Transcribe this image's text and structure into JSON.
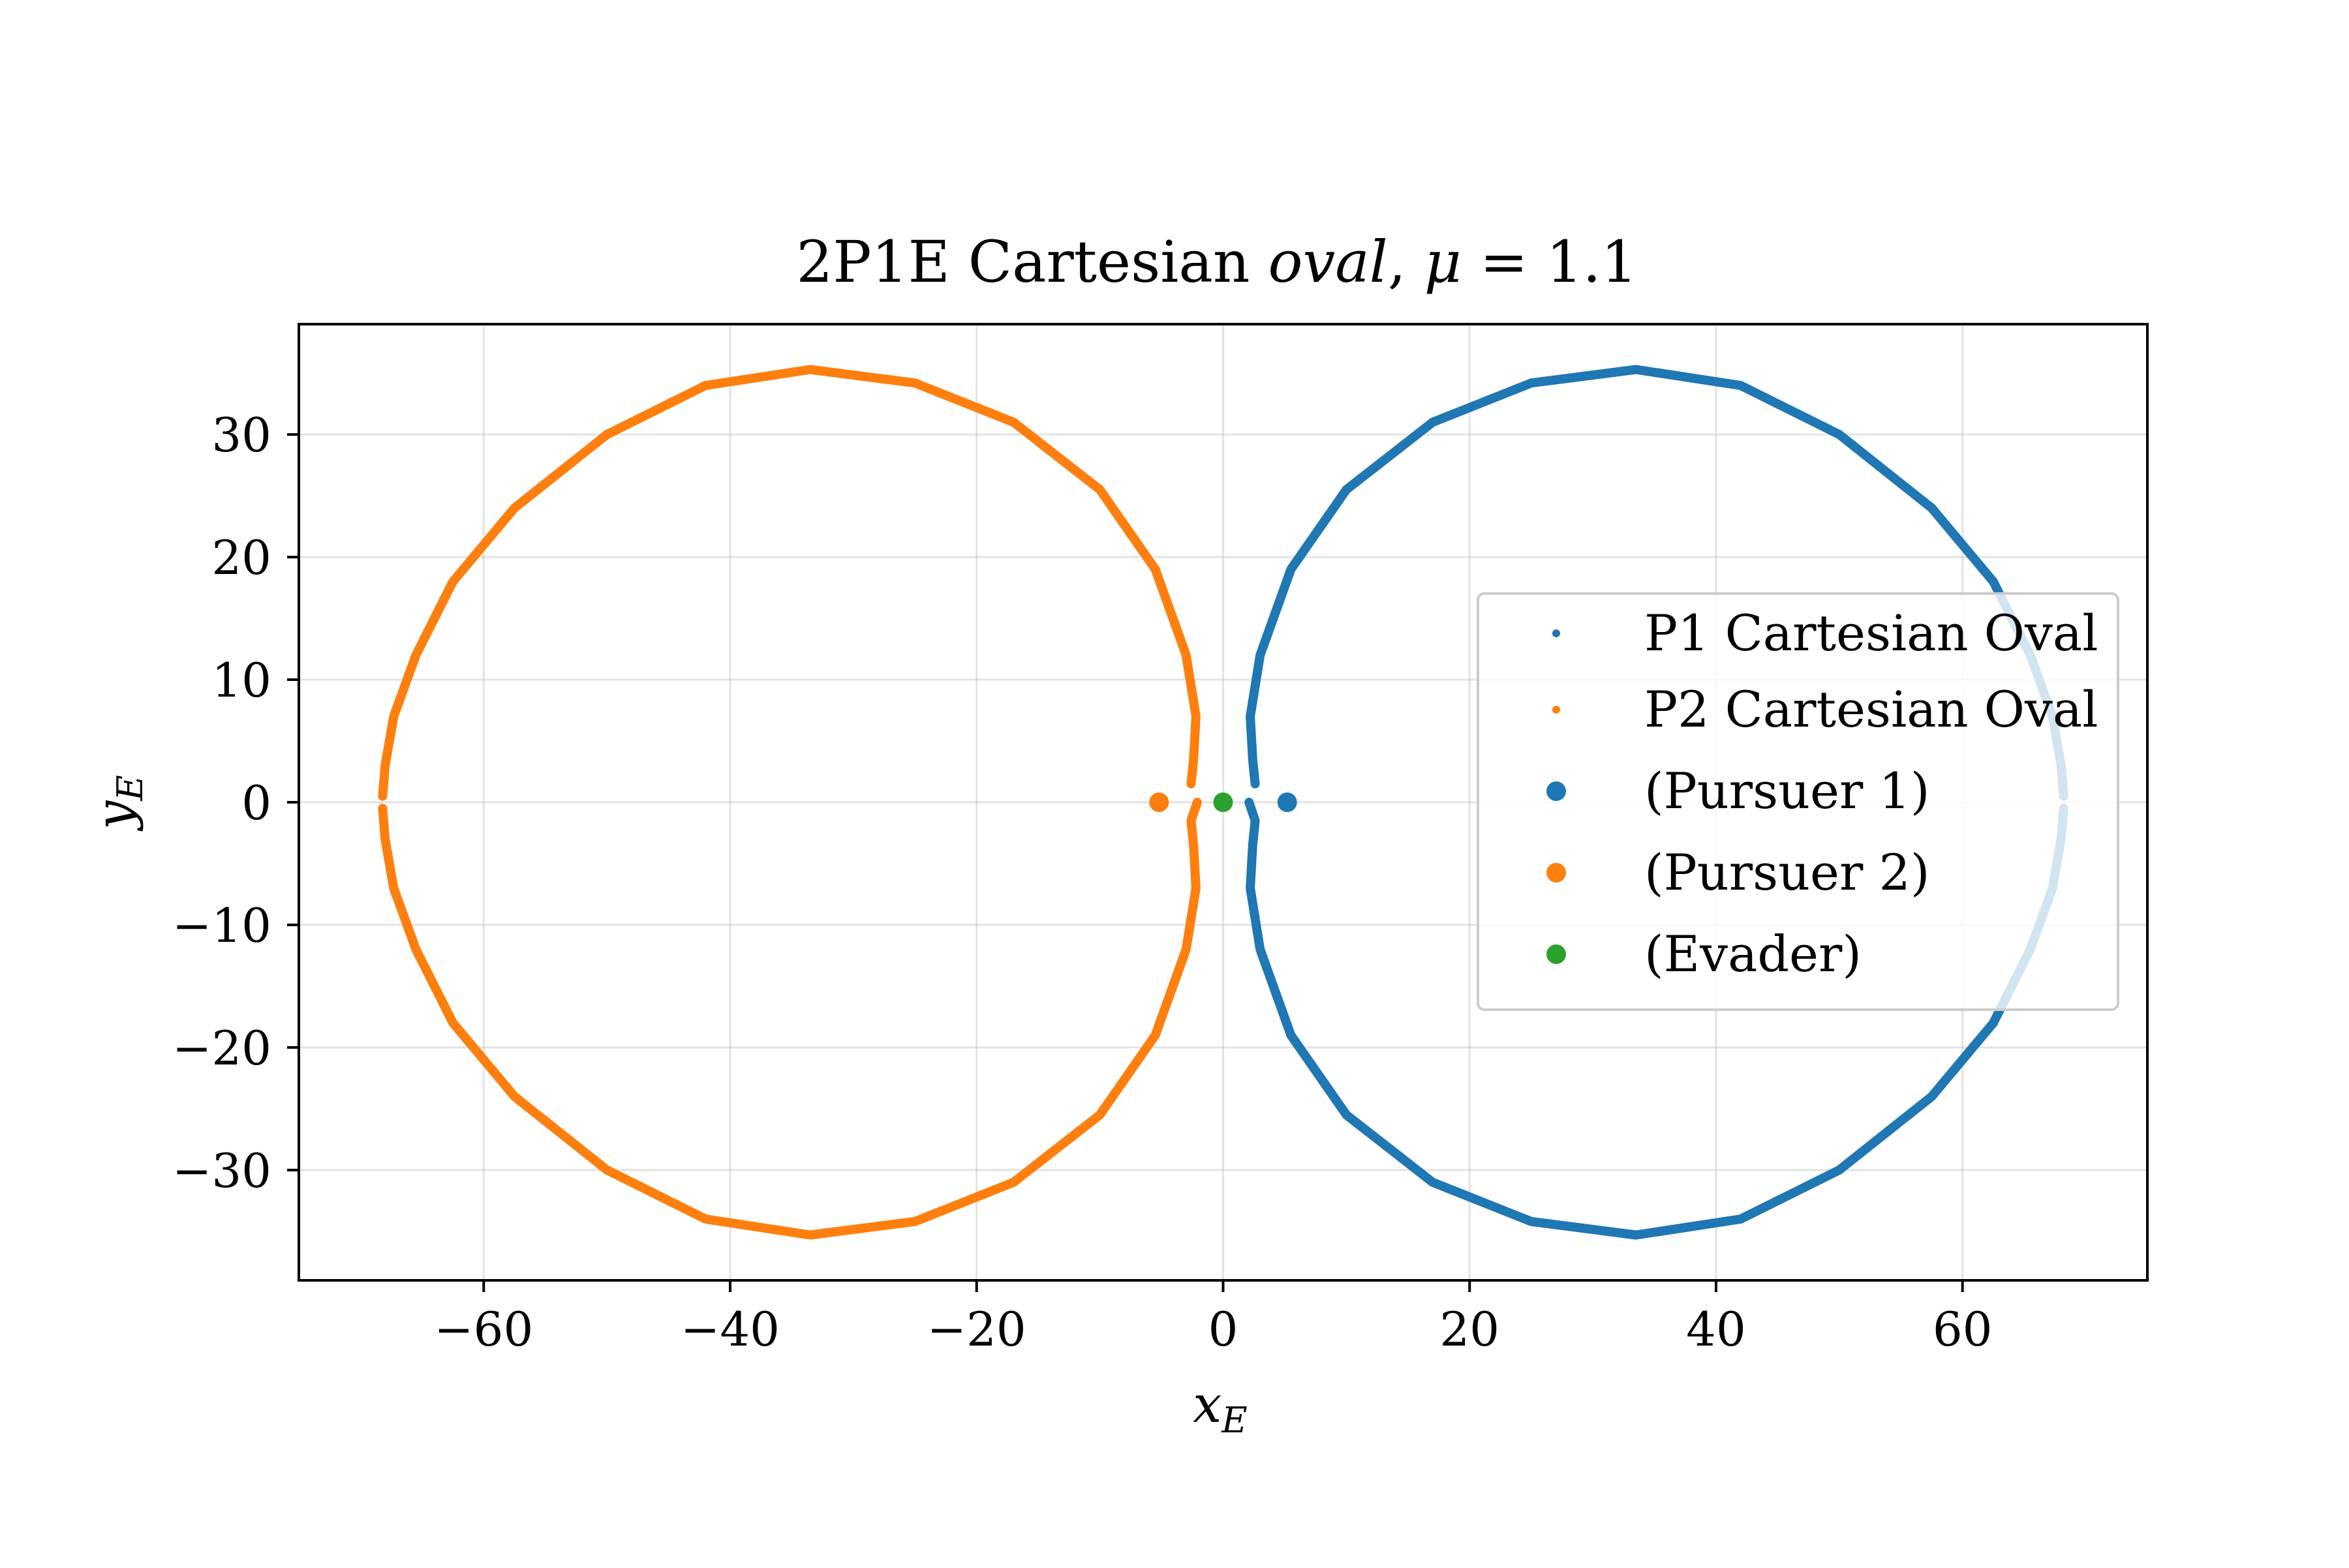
{
  "chart_data": {
    "type": "scatter",
    "title": "2P1E Cartesian oval, μ = 1.1",
    "title_parts": {
      "lead": "2P1E Cartesian ",
      "math_italic_1": "oval",
      "math_sep": ", ",
      "math_italic_2": "μ",
      "math_rest": " = 1.1"
    },
    "xlabel": {
      "base": "x",
      "sub": "E"
    },
    "ylabel": {
      "base": "y",
      "sub": "E"
    },
    "xlim": [
      -75,
      75
    ],
    "ylim": [
      -39,
      39
    ],
    "xticks": [
      -60,
      -40,
      -20,
      0,
      20,
      40,
      60
    ],
    "yticks": [
      -30,
      -20,
      -10,
      0,
      10,
      20,
      30
    ],
    "xtick_labels": [
      "−60",
      "−40",
      "−20",
      "0",
      "20",
      "40",
      "60"
    ],
    "ytick_labels": [
      "−30",
      "−20",
      "−10",
      "0",
      "10",
      "20",
      "30"
    ],
    "grid": true,
    "legend_position": "center-right",
    "mu": 1.1,
    "series": [
      {
        "name": "P1 Cartesian Oval",
        "color": "#1f77b4",
        "marker": "small-dot",
        "oval_points": [
          {
            "x": 68.2,
            "y": 0.5
          },
          {
            "x": 68.0,
            "y": 3
          },
          {
            "x": 67.3,
            "y": 7
          },
          {
            "x": 65.5,
            "y": 12
          },
          {
            "x": 62.5,
            "y": 18
          },
          {
            "x": 57.5,
            "y": 24
          },
          {
            "x": 50.0,
            "y": 30
          },
          {
            "x": 42.0,
            "y": 34
          },
          {
            "x": 33.5,
            "y": 35.3
          },
          {
            "x": 25.0,
            "y": 34.2
          },
          {
            "x": 17.0,
            "y": 31
          },
          {
            "x": 10.0,
            "y": 25.5
          },
          {
            "x": 5.5,
            "y": 19
          },
          {
            "x": 3.0,
            "y": 12
          },
          {
            "x": 2.2,
            "y": 7
          },
          {
            "x": 2.4,
            "y": 3.5
          },
          {
            "x": 2.6,
            "y": 1.5
          },
          {
            "x": 2.1,
            "y": 0
          },
          {
            "x": 2.6,
            "y": -1.5
          },
          {
            "x": 2.4,
            "y": -3.5
          },
          {
            "x": 2.2,
            "y": -7
          },
          {
            "x": 3.0,
            "y": -12
          },
          {
            "x": 5.5,
            "y": -19
          },
          {
            "x": 10.0,
            "y": -25.5
          },
          {
            "x": 17.0,
            "y": -31
          },
          {
            "x": 25.0,
            "y": -34.2
          },
          {
            "x": 33.5,
            "y": -35.3
          },
          {
            "x": 42.0,
            "y": -34
          },
          {
            "x": 50.0,
            "y": -30
          },
          {
            "x": 57.5,
            "y": -24
          },
          {
            "x": 62.5,
            "y": -18
          },
          {
            "x": 65.5,
            "y": -12
          },
          {
            "x": 67.3,
            "y": -7
          },
          {
            "x": 68.0,
            "y": -3
          },
          {
            "x": 68.2,
            "y": -0.5
          }
        ]
      },
      {
        "name": "P2 Cartesian Oval",
        "color": "#ff7f0e",
        "marker": "small-dot",
        "oval_points": [
          {
            "x": -68.2,
            "y": 0.5
          },
          {
            "x": -68.0,
            "y": 3
          },
          {
            "x": -67.3,
            "y": 7
          },
          {
            "x": -65.5,
            "y": 12
          },
          {
            "x": -62.5,
            "y": 18
          },
          {
            "x": -57.5,
            "y": 24
          },
          {
            "x": -50.0,
            "y": 30
          },
          {
            "x": -42.0,
            "y": 34
          },
          {
            "x": -33.5,
            "y": 35.3
          },
          {
            "x": -25.0,
            "y": 34.2
          },
          {
            "x": -17.0,
            "y": 31
          },
          {
            "x": -10.0,
            "y": 25.5
          },
          {
            "x": -5.5,
            "y": 19
          },
          {
            "x": -3.0,
            "y": 12
          },
          {
            "x": -2.2,
            "y": 7
          },
          {
            "x": -2.4,
            "y": 3.5
          },
          {
            "x": -2.6,
            "y": 1.5
          },
          {
            "x": -2.1,
            "y": 0
          },
          {
            "x": -2.6,
            "y": -1.5
          },
          {
            "x": -2.4,
            "y": -3.5
          },
          {
            "x": -2.2,
            "y": -7
          },
          {
            "x": -3.0,
            "y": -12
          },
          {
            "x": -5.5,
            "y": -19
          },
          {
            "x": -10.0,
            "y": -25.5
          },
          {
            "x": -17.0,
            "y": -31
          },
          {
            "x": -25.0,
            "y": -34.2
          },
          {
            "x": -33.5,
            "y": -35.3
          },
          {
            "x": -42.0,
            "y": -34
          },
          {
            "x": -50.0,
            "y": -30
          },
          {
            "x": -57.5,
            "y": -24
          },
          {
            "x": -62.5,
            "y": -18
          },
          {
            "x": -65.5,
            "y": -12
          },
          {
            "x": -67.3,
            "y": -7
          },
          {
            "x": -68.0,
            "y": -3
          },
          {
            "x": -68.2,
            "y": -0.5
          }
        ]
      },
      {
        "name": "(Pursuer 1)",
        "color": "#1f77b4",
        "marker": "dot",
        "points": [
          {
            "x": 5.2,
            "y": 0
          }
        ]
      },
      {
        "name": "(Pursuer 2)",
        "color": "#ff7f0e",
        "marker": "dot",
        "points": [
          {
            "x": -5.2,
            "y": 0
          }
        ]
      },
      {
        "name": "(Evader)",
        "color": "#2ca02c",
        "marker": "dot",
        "points": [
          {
            "x": 0,
            "y": 0
          }
        ]
      }
    ]
  }
}
